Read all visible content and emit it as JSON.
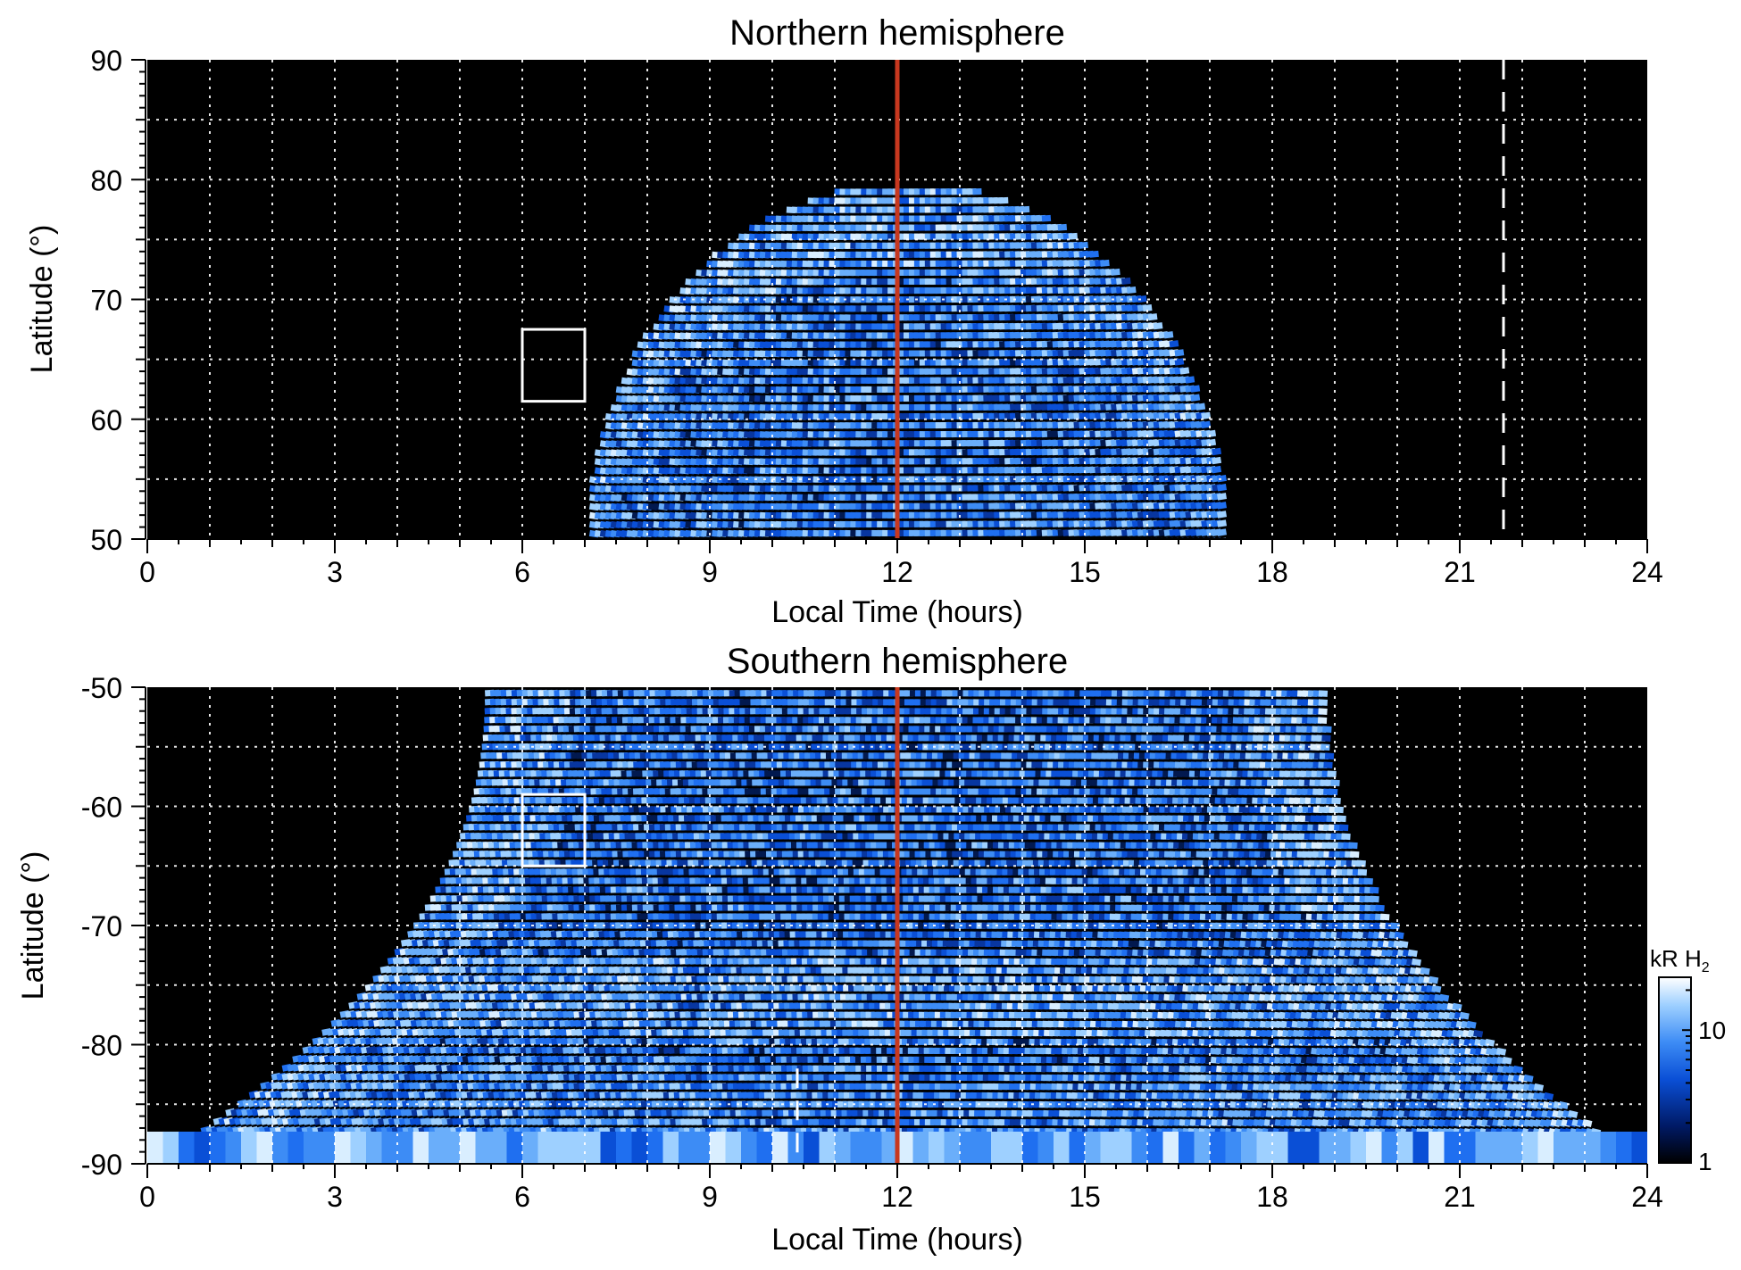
{
  "chart_data": [
    {
      "type": "heatmap",
      "title": "Northern hemisphere",
      "xlabel": "Local Time (hours)",
      "ylabel": "Latitude (°)",
      "xlim": [
        0,
        24
      ],
      "ylim": [
        50,
        90
      ],
      "xticks": [
        "0",
        "3",
        "6",
        "9",
        "12",
        "15",
        "18",
        "21",
        "24"
      ],
      "yticks": [
        "50",
        "60",
        "70",
        "80",
        "90"
      ],
      "grid": true,
      "emission_region": {
        "lt_range": [
          7,
          17.2
        ],
        "lat_range": [
          50,
          80
        ]
      },
      "region_box": {
        "lt": [
          6,
          7
        ],
        "lat": [
          61.5,
          67.5
        ]
      },
      "red_line_lt": 12,
      "dashed_line_lt": 21.7
    },
    {
      "type": "heatmap",
      "title": "Southern hemisphere",
      "xlabel": "Local Time (hours)",
      "ylabel": "Latitude (°)",
      "xlim": [
        0,
        24
      ],
      "ylim": [
        -90,
        -50
      ],
      "xticks": [
        "0",
        "3",
        "6",
        "9",
        "12",
        "15",
        "18",
        "21",
        "24"
      ],
      "yticks": [
        "-50",
        "-60",
        "-70",
        "-80",
        "-90"
      ],
      "grid": true,
      "emission_region": {
        "lt_range_top": [
          5.4,
          18.8
        ],
        "lt_range_bottom": [
          0,
          24
        ],
        "lat_range": [
          -90,
          -50
        ]
      },
      "region_box": {
        "lt": [
          6,
          7
        ],
        "lat": [
          -65,
          -59
        ]
      },
      "red_line_lt": 12,
      "dashed_line_lt": 10.4
    }
  ],
  "colorbar": {
    "unit_label": "kR H",
    "unit_subscript": "2",
    "ticks": [
      "1",
      "10"
    ],
    "scale": "log",
    "range": [
      1,
      25
    ],
    "colors": [
      "#000000",
      "#001a66",
      "#0a4fd6",
      "#3d8cf5",
      "#9ed0ff",
      "#ffffff"
    ]
  },
  "colors": {
    "red_line": "#c8381f",
    "grid": "#ffffff",
    "background": "#000000"
  }
}
